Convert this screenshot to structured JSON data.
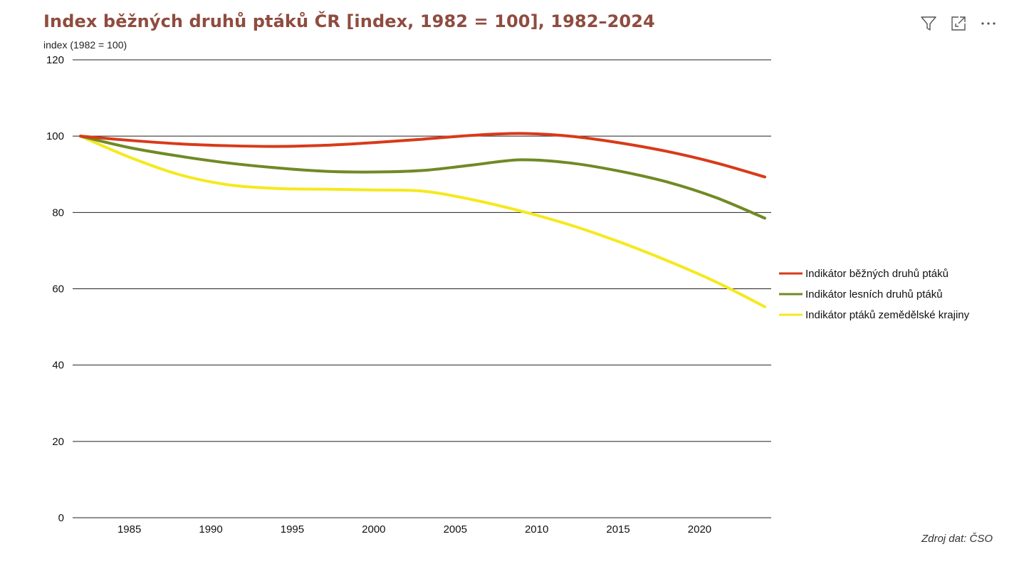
{
  "header": {
    "title": "Index běžných druhů ptáků ČR [index, 1982 = 100], 1982–2024"
  },
  "toolbar": {
    "icons": [
      "filter-icon",
      "expand-icon",
      "more-options-icon"
    ]
  },
  "source": "Zdroj dat: ČSO",
  "chart_data": {
    "type": "line",
    "title": "Index běžných druhů ptáků ČR [index, 1982 = 100], 1982–2024",
    "xlabel": "",
    "ylabel": "index (1982 = 100)",
    "xlim": [
      1982,
      2024
    ],
    "ylim": [
      0,
      120
    ],
    "yticks": [
      0,
      20,
      40,
      60,
      80,
      100,
      120
    ],
    "xticks": [
      1985,
      1990,
      1995,
      2000,
      2005,
      2010,
      2015,
      2020
    ],
    "grid": "horizontal",
    "legend_position": "right",
    "x": [
      1982,
      1985,
      1988,
      1991,
      1994,
      1997,
      2000,
      2003,
      2006,
      2009,
      2012,
      2015,
      2018,
      2021,
      2024
    ],
    "series": [
      {
        "name": "Indikátor běžných druhů ptáků",
        "color": "#d83a19",
        "values": [
          100,
          98.9,
          98.0,
          97.5,
          97.3,
          97.6,
          98.3,
          99.2,
          100.2,
          100.7,
          100.0,
          98.3,
          96.0,
          93.0,
          89.3
        ]
      },
      {
        "name": "Indikátor lesních druhů ptáků",
        "color": "#6f8a24",
        "values": [
          100,
          97.0,
          94.8,
          93.0,
          91.7,
          90.8,
          90.6,
          91.0,
          92.4,
          93.8,
          93.0,
          90.9,
          88.0,
          83.9,
          78.5
        ]
      },
      {
        "name": "Indikátor ptáků zemědělské krajiny",
        "color": "#f5e91e",
        "values": [
          100,
          94.5,
          90.0,
          87.3,
          86.3,
          86.1,
          85.9,
          85.6,
          83.4,
          80.4,
          76.8,
          72.4,
          67.4,
          61.8,
          55.3
        ]
      }
    ]
  }
}
